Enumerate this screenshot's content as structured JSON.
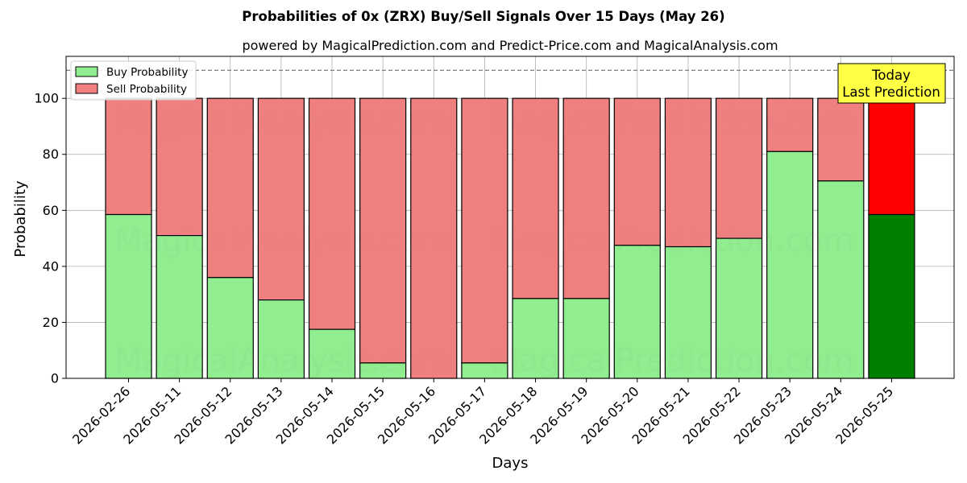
{
  "chart_data": {
    "type": "bar",
    "stacked": true,
    "title": "Probabilities of 0x (ZRX) Buy/Sell Signals Over 15 Days (May 26)",
    "subtitle": "powered by MagicalPrediction.com and Predict-Price.com and MagicalAnalysis.com",
    "xlabel": "Days",
    "ylabel": "Probability",
    "ylim": [
      0,
      115
    ],
    "yticks": [
      0,
      20,
      40,
      60,
      80,
      100
    ],
    "grid": true,
    "legend_placement": "top-left",
    "reference_line": 110,
    "categories": [
      "2026-02-26",
      "2026-05-11",
      "2026-05-12",
      "2026-05-13",
      "2026-05-14",
      "2026-05-15",
      "2026-05-16",
      "2026-05-17",
      "2026-05-18",
      "2026-05-19",
      "2026-05-20",
      "2026-05-21",
      "2026-05-22",
      "2026-05-23",
      "2026-05-24",
      "2026-05-25"
    ],
    "series": [
      {
        "name": "Buy Probability",
        "color": "#90ee90",
        "values": [
          58.5,
          51,
          36,
          28,
          17.5,
          5.5,
          0,
          5.5,
          28.5,
          28.5,
          47.5,
          47,
          50,
          81,
          70.5,
          58.5
        ]
      },
      {
        "name": "Sell Probability",
        "color": "#f08080",
        "values": [
          41.5,
          49,
          64,
          72,
          82.5,
          94.5,
          100,
          94.5,
          71.5,
          71.5,
          52.5,
          53,
          50,
          19,
          29.5,
          41.5
        ]
      }
    ],
    "highlight": {
      "index": 15,
      "buy_color": "#008000",
      "sell_color": "#ff0000"
    },
    "annotation": {
      "line1": "Today",
      "line2": "Last Prediction",
      "color": "#ffff44"
    },
    "watermarks": [
      "MagicalAnalysis.com",
      "MagicalPrediction.com"
    ]
  }
}
